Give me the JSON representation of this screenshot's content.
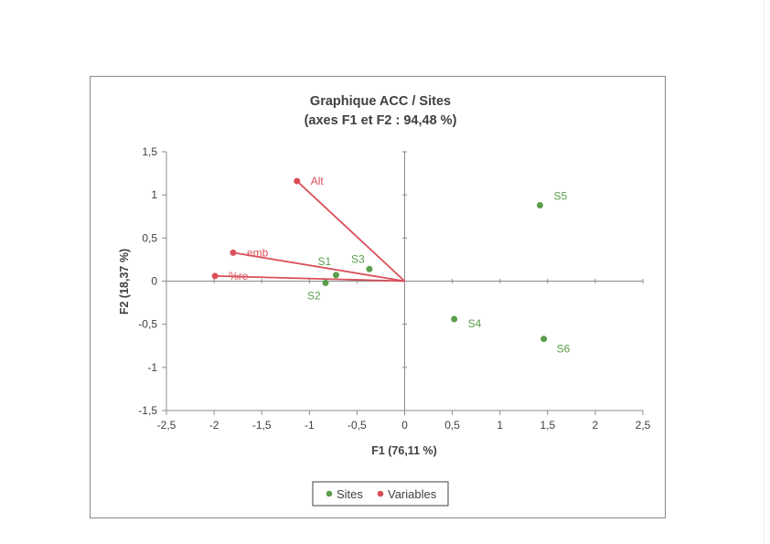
{
  "chart_data": {
    "type": "scatter",
    "title": "Graphique ACC / Sites",
    "subtitle": "(axes F1 et F2 : 94,48 %)",
    "xlabel": "F1 (76,11 %)",
    "ylabel": "F2 (18,37 %)",
    "xlim": [
      -2.5,
      2.5
    ],
    "ylim": [
      -1.5,
      1.5
    ],
    "x_ticks": [
      {
        "value": -2.5,
        "label": "-2,5"
      },
      {
        "value": -2,
        "label": "-2"
      },
      {
        "value": -1.5,
        "label": "-1,5"
      },
      {
        "value": -1,
        "label": "-1"
      },
      {
        "value": -0.5,
        "label": "-0,5"
      },
      {
        "value": 0,
        "label": "0"
      },
      {
        "value": 0.5,
        "label": "0,5"
      },
      {
        "value": 1,
        "label": "1"
      },
      {
        "value": 1.5,
        "label": "1,5"
      },
      {
        "value": 2,
        "label": "2"
      },
      {
        "value": 2.5,
        "label": "2,5"
      }
    ],
    "y_ticks": [
      {
        "value": 1.5,
        "label": "1,5"
      },
      {
        "value": 1,
        "label": "1"
      },
      {
        "value": 0.5,
        "label": "0,5"
      },
      {
        "value": 0,
        "label": "0"
      },
      {
        "value": -0.5,
        "label": "-0,5"
      },
      {
        "value": -1,
        "label": "-1"
      },
      {
        "value": -1.5,
        "label": "-1,5"
      }
    ],
    "grid": false,
    "legend_position": "bottom",
    "series": [
      {
        "name": "Sites",
        "color": "#5a9e4b",
        "points": [
          {
            "label": "S1",
            "x": -0.72,
            "y": 0.07
          },
          {
            "label": "S2",
            "x": -0.83,
            "y": -0.02
          },
          {
            "label": "S3",
            "x": -0.37,
            "y": 0.14
          },
          {
            "label": "S4",
            "x": 0.52,
            "y": -0.44
          },
          {
            "label": "S5",
            "x": 1.42,
            "y": 0.88
          },
          {
            "label": "S6",
            "x": 1.46,
            "y": -0.67
          }
        ]
      },
      {
        "name": "Variables",
        "color": "#d9505a",
        "points": [
          {
            "label": "Alt",
            "x": -1.13,
            "y": 1.16
          },
          {
            "label": "emb",
            "x": -1.8,
            "y": 0.33
          },
          {
            "label": "%re",
            "x": -1.99,
            "y": 0.06
          }
        ]
      }
    ]
  }
}
